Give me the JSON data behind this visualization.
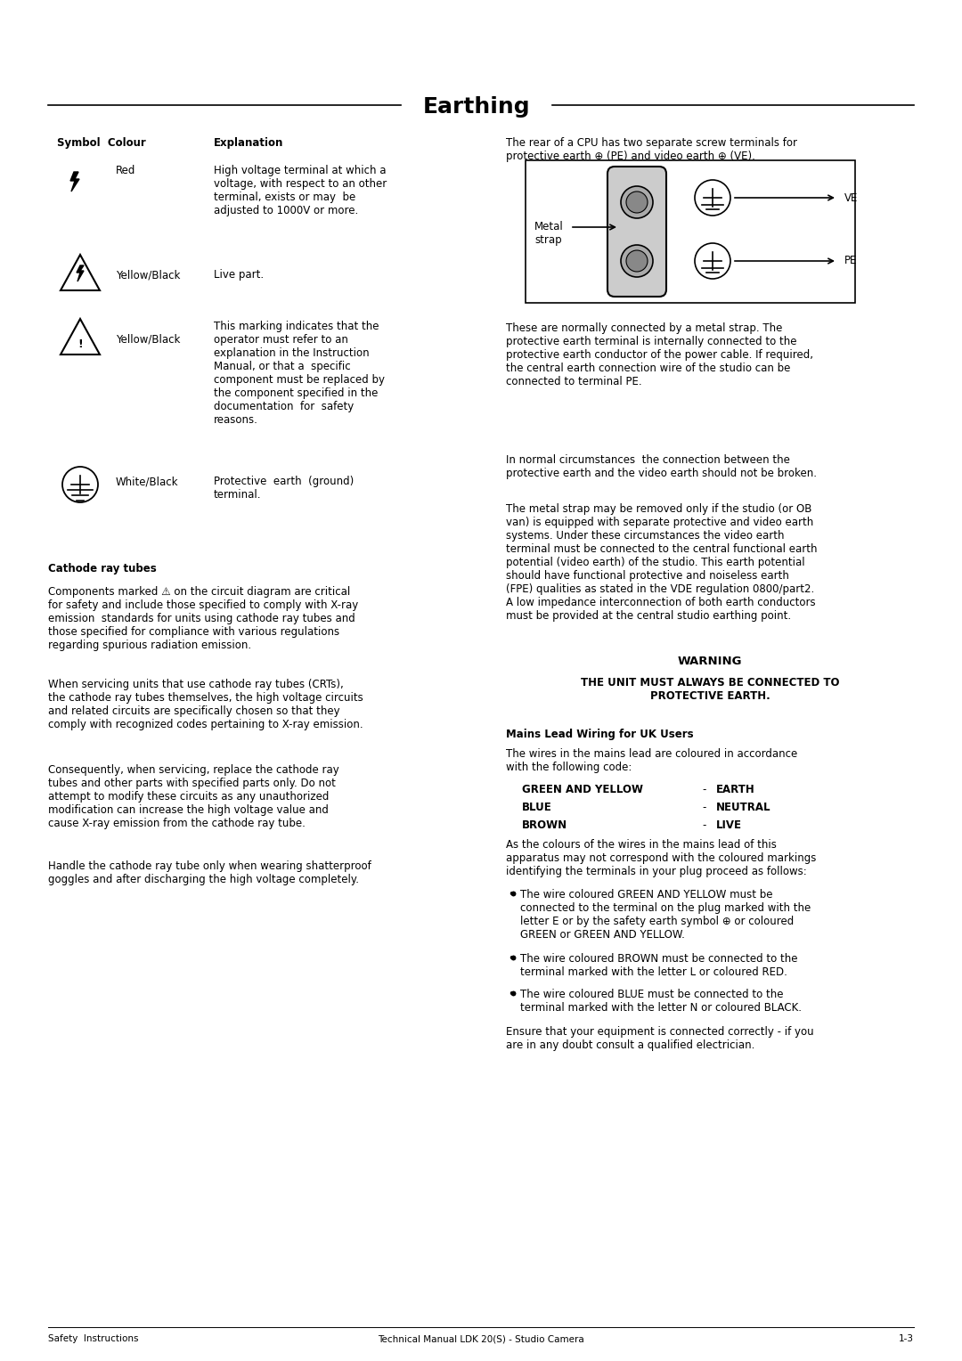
{
  "title": "Earthing",
  "bg_color": "#ffffff",
  "text_color": "#000000",
  "page_width": 10.8,
  "page_height": 15.28,
  "footer_left": "Safety  Instructions",
  "footer_center": "Technical Manual LDK 20(S) - Studio Camera",
  "footer_right": "1-3"
}
